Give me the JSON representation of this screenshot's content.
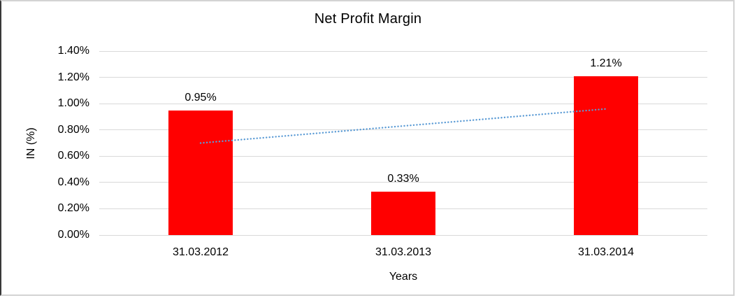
{
  "chart_data": {
    "type": "bar",
    "title": "Net Profit Margin",
    "categories": [
      "31.03.2012",
      "31.03.2013",
      "31.03.2014"
    ],
    "values": [
      0.95,
      0.33,
      1.21
    ],
    "data_labels": [
      "0.95%",
      "0.33%",
      "1.21%"
    ],
    "xlabel": "Years",
    "ylabel": "IN (%)",
    "ylim": [
      0,
      1.4
    ],
    "ytick_step": 0.2,
    "ytick_labels": [
      "0.00%",
      "0.20%",
      "0.40%",
      "0.60%",
      "0.80%",
      "1.00%",
      "1.20%",
      "1.40%"
    ],
    "grid": true,
    "legend": "none",
    "bar_color": "#ff0000",
    "gridline_color": "#d9d9d9",
    "trendline": {
      "type": "linear",
      "style": "dotted",
      "color": "#5b9bd5",
      "start_value": 0.7,
      "end_value": 0.96
    }
  }
}
